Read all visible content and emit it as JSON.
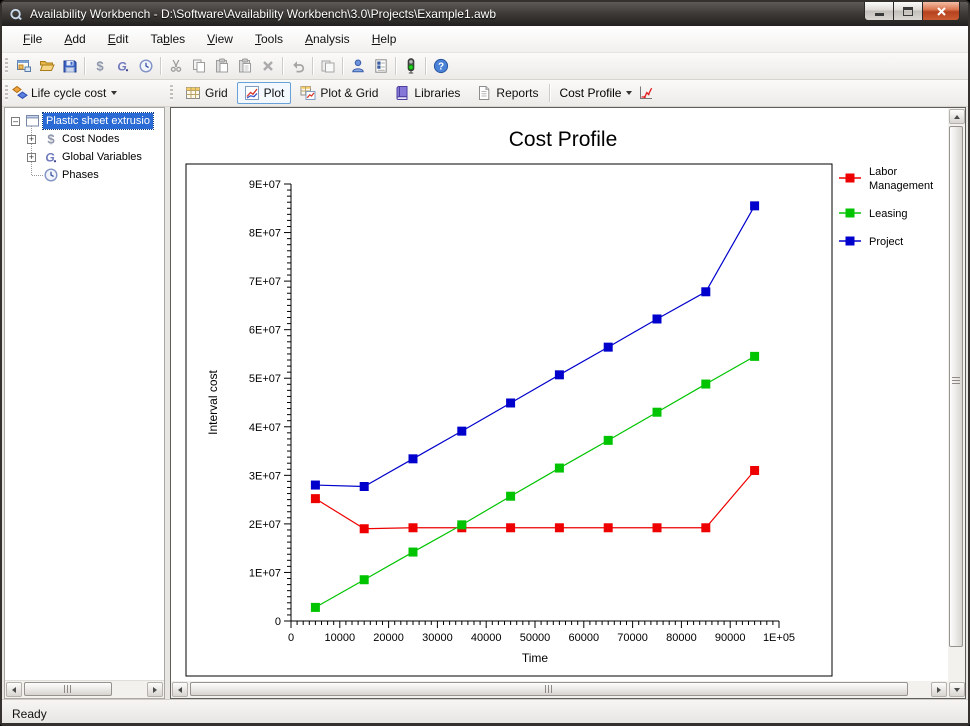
{
  "window": {
    "title": "Availability Workbench - D:\\Software\\Availability Workbench\\3.0\\Projects\\Example1.awb",
    "caption_buttons": [
      "minimize",
      "maximize",
      "close"
    ]
  },
  "menu": {
    "items": [
      {
        "label": "File",
        "underline": 0
      },
      {
        "label": "Add",
        "underline": 0
      },
      {
        "label": "Edit",
        "underline": 0
      },
      {
        "label": "Tables",
        "underline": 2
      },
      {
        "label": "View",
        "underline": 0
      },
      {
        "label": "Tools",
        "underline": 0
      },
      {
        "label": "Analysis",
        "underline": 0
      },
      {
        "label": "Help",
        "underline": 0
      }
    ]
  },
  "toolbar_main": {
    "items": [
      "new-project-icon",
      "open-icon",
      "save-icon",
      "|",
      "cost-nodes-icon",
      "global-variables-icon",
      "phases-icon",
      "|",
      "cut-icon",
      "copy-icon",
      "paste-icon",
      "paste-special-icon",
      "delete-icon",
      "|",
      "undo-icon",
      "|",
      "duplicate-icon",
      "|",
      "user-icon",
      "report-options-icon",
      "|",
      "status-light-icon",
      "|",
      "help-icon"
    ]
  },
  "toolbar_view": {
    "scope": {
      "icon": "life-cycle-cost-icon",
      "label": "Life cycle cost"
    },
    "buttons": [
      {
        "label": "Grid",
        "icon": "grid-icon",
        "active": false
      },
      {
        "label": "Plot",
        "icon": "plot-icon",
        "active": true
      },
      {
        "label": "Plot & Grid",
        "icon": "plot-grid-icon",
        "active": false
      },
      {
        "label": "Libraries",
        "icon": "libraries-icon",
        "active": false
      },
      {
        "label": "Reports",
        "icon": "reports-icon",
        "active": false
      }
    ],
    "profile": {
      "label": "Cost Profile",
      "icon": "profile-trend-icon"
    }
  },
  "tree": {
    "root": {
      "label": "Plastic sheet extrusio",
      "icon": "project-window-icon",
      "expanded": true,
      "selected": true
    },
    "children": [
      {
        "label": "Cost Nodes",
        "icon": "cost-nodes-icon",
        "expandable": true
      },
      {
        "label": "Global Variables",
        "icon": "global-variables-icon",
        "expandable": true
      },
      {
        "label": "Phases",
        "icon": "phases-icon",
        "expandable": false
      }
    ]
  },
  "status_bar": {
    "text": "Ready"
  },
  "chart_data": {
    "type": "line",
    "title": "Cost Profile",
    "xlabel": "Time",
    "ylabel": "Interval cost",
    "xlim": [
      0,
      100000
    ],
    "ylim": [
      0,
      90000000
    ],
    "grid": false,
    "legend_position": "right",
    "marker": "square",
    "minor_ticks_per_division": 8,
    "x_ticks": {
      "values": [
        0,
        10000,
        20000,
        30000,
        40000,
        50000,
        60000,
        70000,
        80000,
        90000,
        100000
      ],
      "labels": [
        "0",
        "10000",
        "20000",
        "30000",
        "40000",
        "50000",
        "60000",
        "70000",
        "80000",
        "90000",
        "1E+05"
      ]
    },
    "y_ticks": {
      "values": [
        0,
        10000000,
        20000000,
        30000000,
        40000000,
        50000000,
        60000000,
        70000000,
        80000000,
        90000000
      ],
      "labels": [
        "0",
        "1E+07",
        "2E+07",
        "3E+07",
        "4E+07",
        "5E+07",
        "6E+07",
        "7E+07",
        "8E+07",
        "9E+07"
      ]
    },
    "x": [
      5000,
      15000,
      25000,
      35000,
      45000,
      55000,
      65000,
      75000,
      85000,
      95000
    ],
    "series": [
      {
        "name": "Labor Management",
        "color": "#ee0000",
        "values": [
          25200000,
          19000000,
          19200000,
          19200000,
          19200000,
          19200000,
          19200000,
          19200000,
          19200000,
          31000000
        ]
      },
      {
        "name": "Leasing",
        "color": "#00c400",
        "values": [
          2800000,
          8500000,
          14200000,
          19800000,
          25700000,
          31500000,
          37200000,
          43000000,
          48800000,
          54500000
        ]
      },
      {
        "name": "Project",
        "color": "#0000cc",
        "values": [
          28000000,
          27700000,
          33400000,
          39100000,
          44900000,
          50700000,
          56400000,
          62200000,
          67800000,
          85500000
        ]
      }
    ]
  }
}
